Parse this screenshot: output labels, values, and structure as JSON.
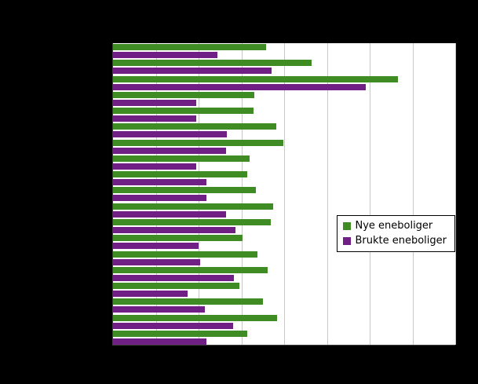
{
  "colors": {
    "background": "#000000",
    "plot_background": "#ffffff",
    "gridline": "#c8c8c8",
    "axis": "#404040",
    "series_new": "#3f8b24",
    "series_used": "#701f85"
  },
  "legend": {
    "items": [
      {
        "label": "Nye eneboliger",
        "color": "#3f8b24"
      },
      {
        "label": "Brukte eneboliger",
        "color": "#701f85"
      }
    ]
  },
  "chart_data": {
    "type": "bar",
    "orientation": "horizontal",
    "title": "",
    "xlabel": "",
    "ylabel": "",
    "xlim": [
      0,
      40000
    ],
    "x_tick_interval": 5000,
    "grid": true,
    "legend_position": "middle-right",
    "categories": [
      "",
      "",
      "",
      "",
      "",
      "",
      "",
      "",
      "",
      "",
      "",
      "",
      "",
      "",
      "",
      "",
      "",
      "",
      ""
    ],
    "series": [
      {
        "name": "Nye eneboliger",
        "color": "#3f8b24",
        "values": [
          17900,
          23200,
          33300,
          16500,
          16400,
          19100,
          19900,
          16000,
          15700,
          16700,
          18700,
          18400,
          15100,
          16900,
          18100,
          14800,
          17500,
          19200,
          15700
        ]
      },
      {
        "name": "Brukte eneboliger",
        "color": "#701f85",
        "values": [
          12200,
          18500,
          29500,
          9700,
          9700,
          13300,
          13200,
          9700,
          10900,
          10900,
          13200,
          14300,
          10000,
          10200,
          14100,
          8700,
          10700,
          14000,
          10900
        ]
      }
    ]
  }
}
